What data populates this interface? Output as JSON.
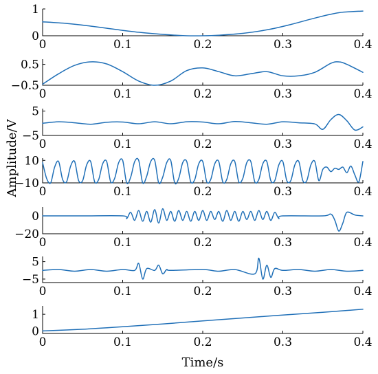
{
  "chart_data": {
    "type": "line",
    "xlabel": "Time/s",
    "ylabel": "Amplitude/V",
    "line_color": "#1f6fb7",
    "panels": [
      {
        "xlim": [
          0,
          0.4
        ],
        "ylim": [
          0,
          1
        ],
        "xticks": [
          "0",
          "0.1",
          "0.2",
          "0.3",
          "0.4"
        ],
        "yticks": [
          {
            "v": 1,
            "label": "1"
          },
          {
            "v": 0,
            "label": "0"
          }
        ],
        "series": [
          {
            "x": [
              0,
              0.03,
              0.06,
              0.09,
              0.12,
              0.15,
              0.18,
              0.2,
              0.22,
              0.25,
              0.28,
              0.31,
              0.34,
              0.37,
              0.4
            ],
            "y": [
              0.52,
              0.46,
              0.36,
              0.24,
              0.13,
              0.05,
              0.0,
              0.0,
              0.02,
              0.09,
              0.22,
              0.42,
              0.66,
              0.86,
              0.92
            ]
          }
        ]
      },
      {
        "xlim": [
          0,
          0.4
        ],
        "ylim": [
          -0.5,
          0.75
        ],
        "xticks": [
          "0",
          "0.1",
          "0.2",
          "0.3",
          "0.4"
        ],
        "yticks": [
          {
            "v": 0.5,
            "label": "0.5"
          },
          {
            "v": -0.5,
            "label": "−0.5"
          }
        ],
        "series": [
          {
            "x": [
              0,
              0.02,
              0.04,
              0.06,
              0.08,
              0.1,
              0.12,
              0.14,
              0.16,
              0.18,
              0.2,
              0.22,
              0.24,
              0.26,
              0.28,
              0.3,
              0.32,
              0.34,
              0.36,
              0.37,
              0.38,
              0.4
            ],
            "y": [
              -0.45,
              0.05,
              0.45,
              0.62,
              0.52,
              0.15,
              -0.3,
              -0.5,
              -0.3,
              0.2,
              0.33,
              0.15,
              -0.05,
              0.05,
              0.15,
              -0.05,
              -0.05,
              0.12,
              0.55,
              0.62,
              0.5,
              0.12
            ]
          }
        ]
      },
      {
        "xlim": [
          0,
          0.4
        ],
        "ylim": [
          -5,
          6
        ],
        "xticks": [
          "0",
          "0.1",
          "0.2",
          "0.3",
          "0.4"
        ],
        "yticks": [
          {
            "v": 5,
            "label": "5"
          },
          {
            "v": -5,
            "label": "−5"
          }
        ],
        "series": [
          {
            "x": [
              0,
              0.02,
              0.04,
              0.06,
              0.08,
              0.1,
              0.12,
              0.14,
              0.16,
              0.18,
              0.2,
              0.22,
              0.24,
              0.26,
              0.28,
              0.3,
              0.32,
              0.34,
              0.35,
              0.36,
              0.37,
              0.38,
              0.39,
              0.4
            ],
            "y": [
              0,
              0.6,
              0.2,
              -0.4,
              0.4,
              0.5,
              -0.2,
              0.6,
              -0.2,
              0.6,
              0.5,
              -0.2,
              0.7,
              0.2,
              -0.4,
              0.6,
              0.2,
              -0.3,
              -2.5,
              1.5,
              3.6,
              1.0,
              -2.8,
              -1.5
            ]
          }
        ]
      },
      {
        "xlim": [
          0,
          0.4
        ],
        "ylim": [
          -10,
          12
        ],
        "xticks": [
          "0",
          "0.1",
          "0.2",
          "0.3",
          "0.4"
        ],
        "yticks": [
          {
            "v": 10,
            "label": "10"
          },
          {
            "v": -10,
            "label": "−10"
          }
        ],
        "series": [
          {
            "x": [
              0,
              0.005,
              0.01,
              0.015,
              0.02,
              0.025,
              0.03,
              0.035,
              0.04,
              0.045,
              0.05,
              0.055,
              0.06,
              0.065,
              0.07,
              0.075,
              0.08,
              0.085,
              0.09,
              0.095,
              0.1,
              0.105,
              0.11,
              0.115,
              0.12,
              0.125,
              0.13,
              0.135,
              0.14,
              0.145,
              0.15,
              0.155,
              0.16,
              0.165,
              0.17,
              0.175,
              0.18,
              0.185,
              0.19,
              0.195,
              0.2,
              0.205,
              0.21,
              0.215,
              0.22,
              0.225,
              0.23,
              0.235,
              0.24,
              0.245,
              0.25,
              0.255,
              0.26,
              0.265,
              0.27,
              0.275,
              0.28,
              0.285,
              0.29,
              0.295,
              0.3,
              0.305,
              0.31,
              0.315,
              0.32,
              0.325,
              0.33,
              0.335,
              0.34,
              0.345,
              0.35,
              0.355,
              0.36,
              0.365,
              0.37,
              0.375,
              0.38,
              0.385,
              0.39,
              0.395,
              0.4
            ],
            "y": [
              8,
              -6,
              -10,
              4,
              9,
              -7,
              -9,
              5,
              9,
              -8,
              -8,
              6,
              9,
              -9,
              -7,
              7,
              9,
              -9,
              -6,
              8,
              10,
              -10,
              -5,
              9,
              10,
              -10,
              -4,
              9,
              10,
              -10,
              -5,
              8,
              10,
              -10,
              -6,
              8,
              9,
              -9,
              -7,
              7,
              9,
              -9,
              -7,
              7,
              9,
              -9,
              -7,
              7,
              9,
              -9,
              -6,
              8,
              9,
              -9,
              -7,
              7,
              9,
              -8,
              -8,
              6,
              9,
              -8,
              -8,
              6,
              9,
              -8,
              -8,
              6,
              9,
              -8,
              2,
              4,
              0,
              3,
              2,
              4,
              -1,
              5,
              -3,
              -9,
              9
            ]
          }
        ]
      },
      {
        "xlim": [
          0,
          0.4
        ],
        "ylim": [
          -20,
          10
        ],
        "xticks": [
          "0",
          "0.1",
          "0.2",
          "0.3",
          "0.4"
        ],
        "yticks": [
          {
            "v": 0,
            "label": "0"
          },
          {
            "v": -20,
            "label": "−20"
          }
        ],
        "series": [
          {
            "x": [
              0,
              0.05,
              0.1,
              0.105,
              0.11,
              0.115,
              0.12,
              0.125,
              0.13,
              0.135,
              0.14,
              0.145,
              0.15,
              0.155,
              0.16,
              0.165,
              0.17,
              0.175,
              0.18,
              0.185,
              0.19,
              0.195,
              0.2,
              0.205,
              0.21,
              0.215,
              0.22,
              0.225,
              0.23,
              0.235,
              0.24,
              0.245,
              0.25,
              0.255,
              0.26,
              0.265,
              0.27,
              0.275,
              0.28,
              0.285,
              0.29,
              0.295,
              0.3,
              0.35,
              0.36,
              0.365,
              0.37,
              0.375,
              0.38,
              0.39,
              0.4
            ],
            "y": [
              0,
              0,
              0,
              -3,
              4,
              -5,
              6,
              -6,
              5,
              -7,
              7,
              -8,
              8,
              -5,
              5,
              -6,
              6,
              -5,
              5,
              -6,
              5,
              -5,
              6,
              -5,
              5,
              -4,
              5,
              -6,
              6,
              -5,
              5,
              -6,
              5,
              -4,
              5,
              -5,
              6,
              -4,
              5,
              -5,
              4,
              -3,
              0,
              0,
              2,
              -5,
              -17,
              -8,
              4,
              1,
              0
            ]
          }
        ]
      },
      {
        "xlim": [
          0,
          0.4
        ],
        "ylim": [
          -7,
          8
        ],
        "xticks": [
          "0",
          "0.1",
          "0.2",
          "0.3",
          "0.4"
        ],
        "yticks": [
          {
            "v": 5,
            "label": "5"
          },
          {
            "v": -5,
            "label": "−5"
          }
        ],
        "series": [
          {
            "x": [
              0,
              0.02,
              0.04,
              0.06,
              0.08,
              0.1,
              0.115,
              0.12,
              0.125,
              0.13,
              0.14,
              0.145,
              0.15,
              0.155,
              0.16,
              0.2,
              0.22,
              0.24,
              0.265,
              0.27,
              0.275,
              0.28,
              0.285,
              0.29,
              0.3,
              0.32,
              0.34,
              0.36,
              0.38,
              0.4
            ],
            "y": [
              0,
              0.5,
              -0.5,
              0.5,
              -0.5,
              0.5,
              0,
              4,
              -5,
              1,
              0,
              3,
              -2,
              0.5,
              0,
              0.5,
              -0.5,
              0.5,
              -2,
              7,
              -5,
              3,
              -4,
              1,
              0,
              0.5,
              -0.5,
              0.5,
              -0.5,
              0
            ]
          }
        ]
      },
      {
        "xlim": [
          0,
          0.4
        ],
        "ylim": [
          -0.15,
          1.5
        ],
        "xticks": [
          "0",
          "0.1",
          "0.2",
          "0.3",
          "0.4"
        ],
        "yticks": [
          {
            "v": 1,
            "label": "1"
          },
          {
            "v": 0,
            "label": "0"
          }
        ],
        "series": [
          {
            "x": [
              0,
              0.05,
              0.1,
              0.15,
              0.2,
              0.25,
              0.3,
              0.35,
              0.4
            ],
            "y": [
              0,
              0.1,
              0.25,
              0.42,
              0.6,
              0.78,
              0.95,
              1.12,
              1.3
            ]
          }
        ]
      }
    ]
  }
}
